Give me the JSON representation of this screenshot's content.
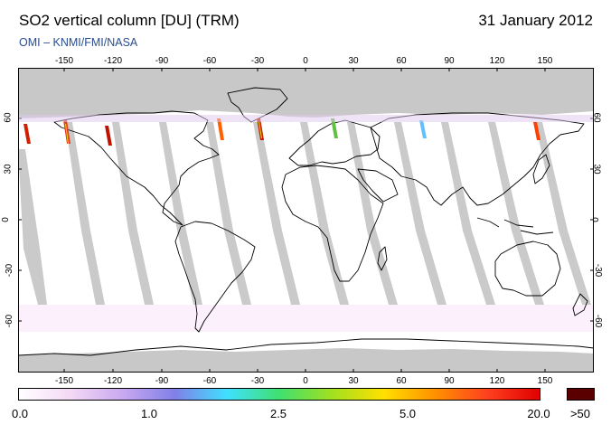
{
  "header": {
    "title": "SO2 vertical column [DU] (TRM)",
    "date": "31 January 2012",
    "credit": "OMI  –  KNMI/FMI/NASA"
  },
  "map": {
    "lon_ticks": [
      "-150",
      "-120",
      "-90",
      "-60",
      "-30",
      "0",
      "30",
      "60",
      "90",
      "120",
      "150"
    ],
    "lat_ticks_left": [
      "60",
      "30",
      "0",
      "-30",
      "-60"
    ],
    "lat_ticks_right": [
      "60",
      "30",
      "0",
      "-30",
      "-60"
    ],
    "colors": {
      "no_data_polar": "#c8c8c8",
      "orbit_gap": "#b4b4b4",
      "coast": "#000000"
    }
  },
  "colorbar": {
    "labels": [
      "0.0",
      "1.0",
      "2.5",
      "5.0",
      "20.0"
    ],
    "over_label": ">50",
    "over_color": "#5a0000",
    "stops": [
      "#ffffff",
      "#f4d8f4",
      "#c8a8f0",
      "#8080e8",
      "#40e0ff",
      "#40e070",
      "#a0e020",
      "#ffe000",
      "#ff9000",
      "#ff4020",
      "#e00000"
    ]
  }
}
